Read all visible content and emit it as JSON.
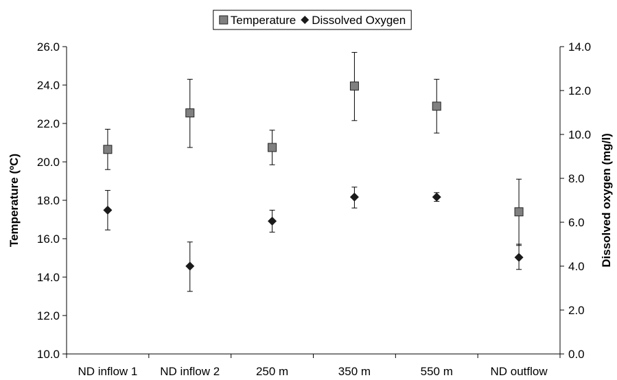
{
  "chart_data": {
    "type": "scatter",
    "title": "",
    "categories": [
      "ND inflow 1",
      "ND inflow 2",
      "250 m",
      "350 m",
      "550 m",
      "ND outflow"
    ],
    "xlabel": "",
    "y_left": {
      "label": "Temperature (ºC)",
      "min": 10.0,
      "max": 26.0,
      "step": 2.0,
      "decimals": 1
    },
    "y_right": {
      "label": "Dissolved oxygen (mg/l)",
      "min": 0.0,
      "max": 14.0,
      "step": 2.0,
      "decimals": 1
    },
    "legend": {
      "position": "top-center",
      "border": true
    },
    "grid": false,
    "series": [
      {
        "name": "Temperature",
        "axis": "left",
        "marker": "square",
        "color": "#808080",
        "values": [
          20.65,
          22.55,
          20.75,
          23.95,
          22.9,
          17.4
        ],
        "error_low": [
          19.6,
          20.75,
          19.85,
          22.15,
          21.5,
          15.65
        ],
        "error_high": [
          21.7,
          24.3,
          21.65,
          25.7,
          24.3,
          19.1
        ]
      },
      {
        "name": "Dissolved Oxygen",
        "axis": "right",
        "marker": "diamond",
        "color": "#1a1a1a",
        "values": [
          6.55,
          4.0,
          6.05,
          7.15,
          7.15,
          4.4
        ],
        "error_low": [
          5.65,
          2.85,
          5.55,
          6.65,
          6.95,
          3.85
        ],
        "error_high": [
          7.45,
          5.1,
          6.55,
          7.6,
          7.35,
          5.0
        ]
      }
    ]
  }
}
